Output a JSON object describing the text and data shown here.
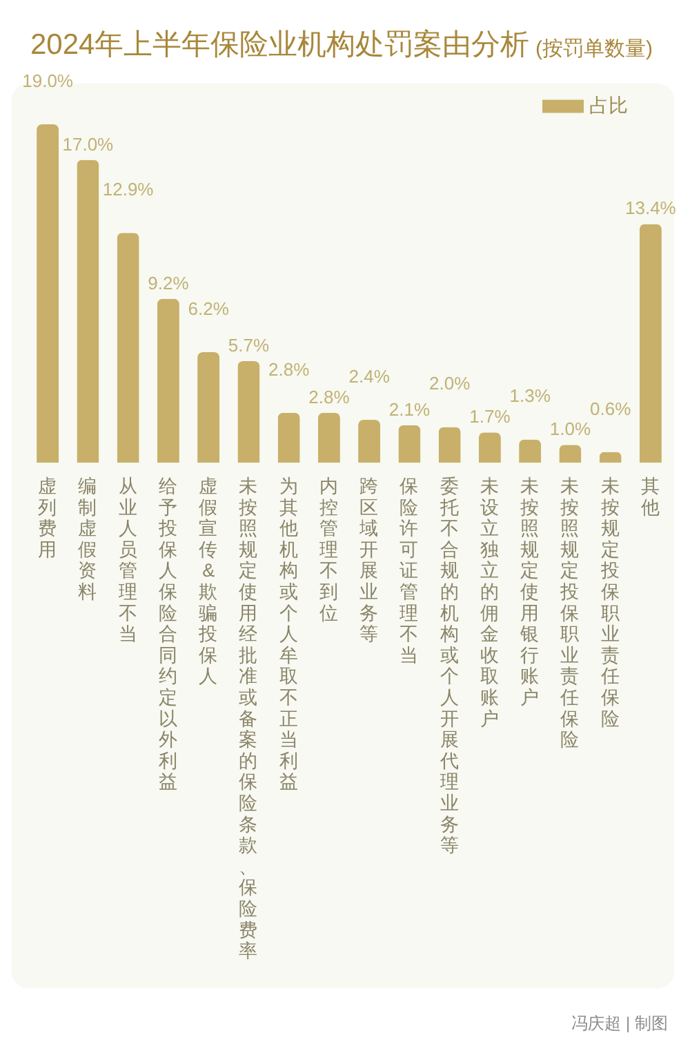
{
  "chart_data": {
    "type": "bar",
    "title": "2024年上半年保险业机构处罚案由分析",
    "subtitle": "(按罚单数量)",
    "categories": [
      "虚列费用",
      "编制虚假资料",
      "从业人员管理不当",
      "给予投保人保险合同约定以外利益",
      "虚假宣传&欺骗投保人",
      "未按照规定使用经批准或备案的保险条款、保险费率",
      "为其他机构或个人牟取不正当利益",
      "内控管理不到位",
      "跨区域开展业务等",
      "保险许可证管理不当",
      "委托不合规的机构或个人开展代理业务等",
      "未设立独立的佣金收取账户",
      "未按照规定使用银行账户",
      "未按照规定投保职业责任保险",
      "未按规定投保职业责任保险",
      "其他"
    ],
    "series": [
      {
        "name": "占比",
        "color": "#c8b06a",
        "values": [
          19.0,
          17.0,
          12.9,
          9.2,
          6.2,
          5.7,
          2.8,
          2.8,
          2.4,
          2.1,
          2.0,
          1.7,
          1.3,
          1.0,
          0.6,
          13.4
        ],
        "value_labels": [
          "19.0%",
          "17.0%",
          "12.9%",
          "9.2%",
          "6.2%",
          "5.7%",
          "2.8%",
          "2.8%",
          "2.4%",
          "2.1%",
          "2.0%",
          "1.7%",
          "1.3%",
          "1.0%",
          "0.6%",
          "13.4%"
        ]
      }
    ],
    "legend": "top right",
    "tick_labels": "x",
    "annotations": [
      "冯庆超 | 制图"
    ]
  }
}
